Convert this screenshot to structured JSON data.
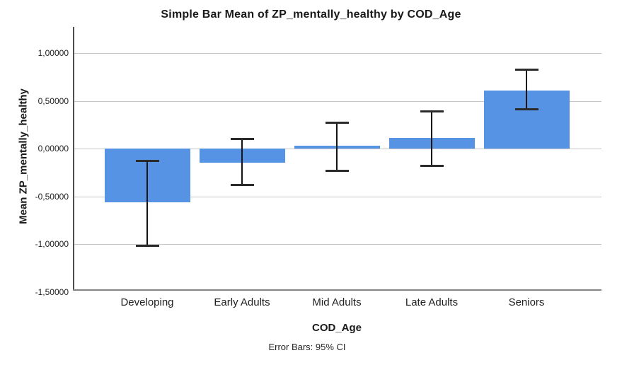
{
  "chart": {
    "title": "Simple Bar Mean of ZP_mentally_healthy by COD_Age",
    "x_axis_title": "COD_Age",
    "y_axis_title": "Mean ZP_mentally_healthy",
    "footnote": "Error Bars: 95% CI"
  },
  "chart_data": {
    "type": "bar",
    "title": "Simple Bar Mean of ZP_mentally_healthy by COD_Age",
    "xlabel": "COD_Age",
    "ylabel": "Mean ZP_mentally_healthy",
    "categories": [
      "Developing",
      "Early Adults",
      "Mid Adults",
      "Late Adults",
      "Seniors"
    ],
    "values": [
      -0.56,
      -0.15,
      0.03,
      0.11,
      0.61
    ],
    "error_bars": {
      "interval": "95% CI",
      "footnote": "Error Bars: 95% CI",
      "low": [
        -1.02,
        -0.38,
        -0.23,
        -0.18,
        0.41
      ],
      "high": [
        -0.13,
        0.1,
        0.27,
        0.39,
        0.83
      ]
    },
    "ylim": [
      -1.48,
      1.26
    ],
    "yticks": [
      1.0,
      0.5,
      0.0,
      -0.5,
      -1.0,
      -1.5
    ],
    "ytick_labels": [
      "1,00000",
      "0,50000",
      "0,00000",
      "-0,50000",
      "-1,00000",
      "-1,50000"
    ],
    "grid": true,
    "legend": "none",
    "bar_color": "#5793E4"
  },
  "colors": {
    "bar": "#5793E4",
    "gridline": "#C6C6C6",
    "y_axis_line": "#4F4F4F",
    "x_axis_line": "#858585",
    "error_bar_line": "#141414",
    "error_bar_cap": "#2B2B2B",
    "text": "#1F1F1F",
    "background": "#FFFFFF"
  }
}
